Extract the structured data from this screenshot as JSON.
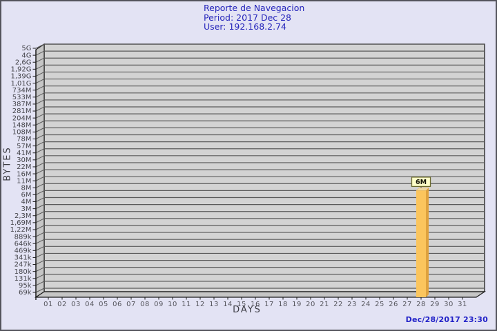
{
  "window": {
    "background": "#e3e3f4",
    "border_color": "#54545c"
  },
  "header": {
    "title": "Reporte de Navegacion",
    "period": "Period: 2017 Dec 28",
    "user": "User: 192.168.2.74",
    "text_color": "#2525bb"
  },
  "footer": {
    "timestamp": "Dec/28/2017 23:30",
    "text_color": "#2323c8"
  },
  "chart_data": {
    "type": "bar",
    "style": "3d-bar",
    "title": "Reporte de Navegacion",
    "xlabel": "DAYS",
    "ylabel": "BYTES",
    "grid": true,
    "x_categories": [
      "01",
      "02",
      "03",
      "04",
      "05",
      "06",
      "07",
      "08",
      "09",
      "10",
      "11",
      "12",
      "13",
      "14",
      "15",
      "16",
      "17",
      "18",
      "19",
      "20",
      "21",
      "22",
      "23",
      "24",
      "25",
      "26",
      "27",
      "28",
      "29",
      "30",
      "31"
    ],
    "ytick_labels": [
      "5G",
      "4G",
      "2,6G",
      "1,92G",
      "1,39G",
      "1,01G",
      "734M",
      "533M",
      "387M",
      "281M",
      "204M",
      "148M",
      "108M",
      "78M",
      "57M",
      "41M",
      "30M",
      "22M",
      "16M",
      "11M",
      "8M",
      "6M",
      "4M",
      "3M",
      "2,3M",
      "1,69M",
      "1,22M",
      "889k",
      "646k",
      "469k",
      "341k",
      "247k",
      "180k",
      "131k",
      "95k",
      "69k"
    ],
    "bars": [
      {
        "day": "28",
        "value_label": "6M"
      }
    ],
    "colors": {
      "plot_bg": "#d3d3d3",
      "wall_bg": "#c6c6c6",
      "gridline": "#5a5a5a",
      "axis": "#1c1c1c",
      "ytick_text": "#45454b",
      "xtick_text": "#55555c",
      "bar_front": "#fbc55d",
      "bar_side": "#dfa23d",
      "bar_top": "#f0dba4",
      "value_box_bg": "#ffffc9",
      "value_box_border": "#6b6b2f"
    }
  }
}
